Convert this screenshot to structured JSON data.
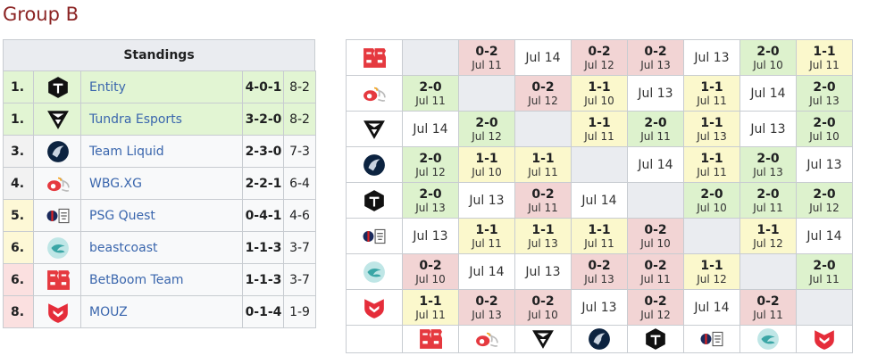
{
  "title": "Group B",
  "standings": {
    "header": "Standings",
    "rows": [
      {
        "rank": "1.",
        "team": "Entity",
        "record": "4-0-1",
        "maps": "8-2"
      },
      {
        "rank": "1.",
        "team": "Tundra Esports",
        "record": "3-2-0",
        "maps": "8-2"
      },
      {
        "rank": "3.",
        "team": "Team Liquid",
        "record": "2-3-0",
        "maps": "7-3"
      },
      {
        "rank": "4.",
        "team": "WBG.XG",
        "record": "2-2-1",
        "maps": "6-4"
      },
      {
        "rank": "5.",
        "team": "PSG Quest",
        "record": "0-4-1",
        "maps": "4-6"
      },
      {
        "rank": "6.",
        "team": "beastcoast",
        "record": "1-1-3",
        "maps": "3-7"
      },
      {
        "rank": "6.",
        "team": "BetBoom Team",
        "record": "1-1-3",
        "maps": "3-7"
      },
      {
        "rank": "8.",
        "team": "MOUZ",
        "record": "0-1-4",
        "maps": "1-9"
      }
    ]
  },
  "crosstable": {
    "rows": [
      [
        null,
        {
          "score": "0-2",
          "date": "Jul 11"
        },
        {
          "date": "Jul 14"
        },
        {
          "score": "0-2",
          "date": "Jul 12"
        },
        {
          "score": "0-2",
          "date": "Jul 13"
        },
        {
          "date": "Jul 13"
        },
        {
          "score": "2-0",
          "date": "Jul 10"
        },
        {
          "score": "1-1",
          "date": "Jul 11"
        }
      ],
      [
        {
          "score": "2-0",
          "date": "Jul 11"
        },
        null,
        {
          "score": "0-2",
          "date": "Jul 12"
        },
        {
          "score": "1-1",
          "date": "Jul 10"
        },
        {
          "date": "Jul 13"
        },
        {
          "score": "1-1",
          "date": "Jul 11"
        },
        {
          "date": "Jul 14"
        },
        {
          "score": "2-0",
          "date": "Jul 13"
        }
      ],
      [
        {
          "date": "Jul 14"
        },
        {
          "score": "2-0",
          "date": "Jul 12"
        },
        null,
        {
          "score": "1-1",
          "date": "Jul 11"
        },
        {
          "score": "2-0",
          "date": "Jul 11"
        },
        {
          "score": "1-1",
          "date": "Jul 13"
        },
        {
          "date": "Jul 13"
        },
        {
          "score": "2-0",
          "date": "Jul 10"
        }
      ],
      [
        {
          "score": "2-0",
          "date": "Jul 12"
        },
        {
          "score": "1-1",
          "date": "Jul 10"
        },
        {
          "score": "1-1",
          "date": "Jul 11"
        },
        null,
        {
          "date": "Jul 14"
        },
        {
          "score": "1-1",
          "date": "Jul 11"
        },
        {
          "score": "2-0",
          "date": "Jul 13"
        },
        {
          "date": "Jul 13"
        }
      ],
      [
        {
          "score": "2-0",
          "date": "Jul 13"
        },
        {
          "date": "Jul 13"
        },
        {
          "score": "0-2",
          "date": "Jul 11"
        },
        {
          "date": "Jul 14"
        },
        null,
        {
          "score": "2-0",
          "date": "Jul 10"
        },
        {
          "score": "2-0",
          "date": "Jul 11"
        },
        {
          "score": "2-0",
          "date": "Jul 12"
        }
      ],
      [
        {
          "date": "Jul 13"
        },
        {
          "score": "1-1",
          "date": "Jul 11"
        },
        {
          "score": "1-1",
          "date": "Jul 13"
        },
        {
          "score": "1-1",
          "date": "Jul 11"
        },
        {
          "score": "0-2",
          "date": "Jul 10"
        },
        null,
        {
          "score": "1-1",
          "date": "Jul 12"
        },
        {
          "date": "Jul 14"
        }
      ],
      [
        {
          "score": "0-2",
          "date": "Jul 10"
        },
        {
          "date": "Jul 14"
        },
        {
          "date": "Jul 13"
        },
        {
          "score": "0-2",
          "date": "Jul 13"
        },
        {
          "score": "0-2",
          "date": "Jul 11"
        },
        {
          "score": "1-1",
          "date": "Jul 12"
        },
        null,
        {
          "score": "2-0",
          "date": "Jul 11"
        }
      ],
      [
        {
          "score": "1-1",
          "date": "Jul 11"
        },
        {
          "score": "0-2",
          "date": "Jul 13"
        },
        {
          "score": "0-2",
          "date": "Jul 10"
        },
        {
          "date": "Jul 13"
        },
        {
          "score": "0-2",
          "date": "Jul 12"
        },
        {
          "date": "Jul 14"
        },
        {
          "score": "0-2",
          "date": "Jul 11"
        },
        null
      ]
    ]
  }
}
